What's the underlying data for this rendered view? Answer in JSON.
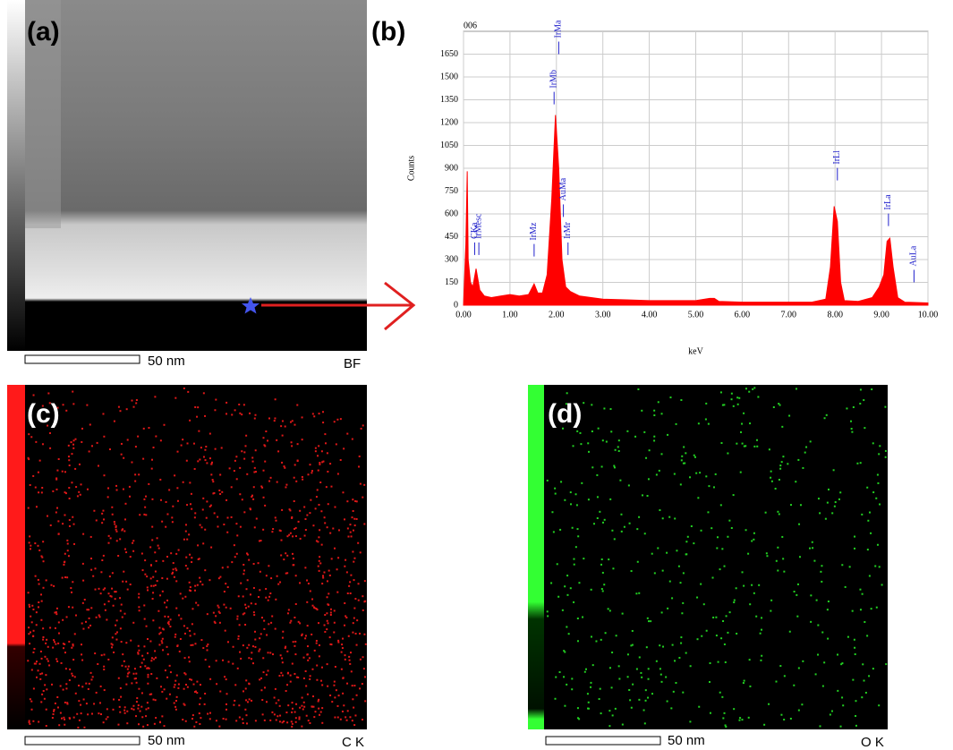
{
  "panels": {
    "a": {
      "label": "(a)",
      "scale": "50 nm",
      "caption": "BF"
    },
    "b": {
      "label": "(b)"
    },
    "c": {
      "label": "(c)",
      "scale": "50 nm",
      "caption": "C K"
    },
    "d": {
      "label": "(d)",
      "scale": "50 nm",
      "caption": "O K"
    }
  },
  "chart_data": {
    "type": "area",
    "title": "006",
    "x_label": "keV",
    "y_label": "Counts",
    "color": "#ff0000",
    "grid": true,
    "xlim": [
      0,
      10
    ],
    "ylim": [
      0,
      1800
    ],
    "xticks": [
      {
        "value": 0,
        "label": "0.00"
      },
      {
        "value": 1,
        "label": "1.00"
      },
      {
        "value": 2,
        "label": "2.00"
      },
      {
        "value": 3,
        "label": "3.00"
      },
      {
        "value": 4,
        "label": "4.00"
      },
      {
        "value": 5,
        "label": "5.00"
      },
      {
        "value": 6,
        "label": "6.00"
      },
      {
        "value": 7,
        "label": "7.00"
      },
      {
        "value": 8,
        "label": "8.00"
      },
      {
        "value": 9,
        "label": "9.00"
      },
      {
        "value": 10,
        "label": "10.00"
      }
    ],
    "yticks": [
      0,
      150,
      300,
      450,
      600,
      750,
      900,
      1050,
      1200,
      1350,
      1500,
      1650
    ],
    "x": [
      0,
      0.05,
      0.08,
      0.1,
      0.15,
      0.2,
      0.27,
      0.35,
      0.45,
      0.6,
      0.8,
      1.0,
      1.2,
      1.4,
      1.52,
      1.6,
      1.7,
      1.8,
      1.9,
      1.98,
      2.05,
      2.12,
      2.2,
      2.3,
      2.5,
      3.0,
      3.5,
      4.0,
      4.5,
      5.0,
      5.3,
      5.4,
      5.5,
      6.0,
      6.5,
      7.0,
      7.5,
      7.8,
      7.9,
      7.98,
      8.05,
      8.12,
      8.2,
      8.5,
      8.8,
      8.95,
      9.05,
      9.12,
      9.18,
      9.25,
      9.35,
      9.5,
      10.0
    ],
    "values": [
      0,
      400,
      880,
      300,
      150,
      120,
      240,
      100,
      60,
      50,
      60,
      70,
      60,
      70,
      140,
      80,
      80,
      200,
      700,
      1250,
      900,
      300,
      120,
      90,
      60,
      40,
      35,
      30,
      30,
      30,
      45,
      45,
      25,
      20,
      20,
      20,
      20,
      40,
      250,
      650,
      550,
      150,
      30,
      25,
      50,
      120,
      200,
      420,
      440,
      250,
      50,
      20,
      15
    ],
    "peak_labels": [
      {
        "label": "CKa",
        "x": 0.24,
        "y": 330
      },
      {
        "label": "IrMesc",
        "x": 0.33,
        "y": 330
      },
      {
        "label": "IrMz",
        "x": 1.52,
        "y": 320
      },
      {
        "label": "IrMb",
        "x": 1.95,
        "y": 1320
      },
      {
        "label": "IrMa",
        "x": 2.05,
        "y": 1650
      },
      {
        "label": "AuMa",
        "x": 2.15,
        "y": 580
      },
      {
        "label": "IrMr",
        "x": 2.25,
        "y": 330
      },
      {
        "label": "IrLl",
        "x": 8.05,
        "y": 820
      },
      {
        "label": "IrLa",
        "x": 9.15,
        "y": 520
      },
      {
        "label": "AuLa",
        "x": 9.7,
        "y": 150
      }
    ]
  }
}
